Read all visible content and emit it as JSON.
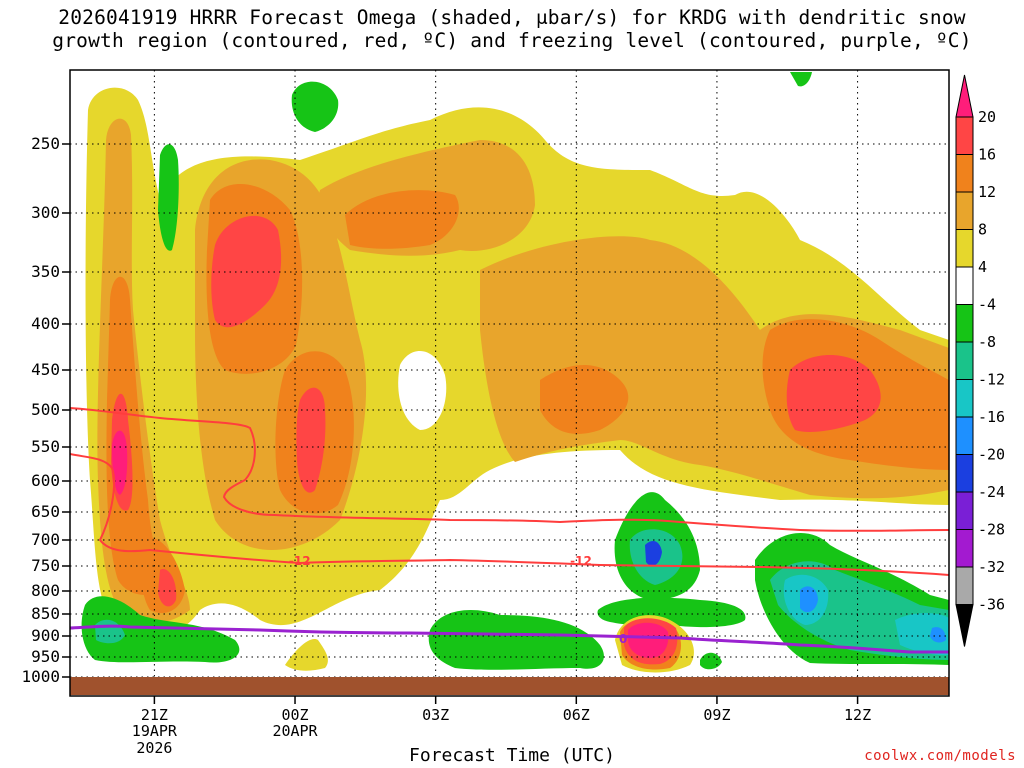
{
  "title": {
    "line1": "2026041919 HRRR Forecast Omega (shaded, μbar/s) for KRDG with dendritic snow",
    "line2": "growth region (contoured, red, ºC) and freezing level (contoured, purple, ºC)"
  },
  "x_axis_title": "Forecast Time (UTC)",
  "credit": "coolwx.com/models",
  "chart_data": {
    "type": "heatmap",
    "x": {
      "ticks": [
        {
          "label": "21Z",
          "sub": [
            "19APR",
            "2026"
          ],
          "hours": 2
        },
        {
          "label": "00Z",
          "sub": [
            "20APR"
          ],
          "hours": 5
        },
        {
          "label": "03Z",
          "sub": [],
          "hours": 8
        },
        {
          "label": "06Z",
          "sub": [],
          "hours": 11
        },
        {
          "label": "09Z",
          "sub": [],
          "hours": 14
        },
        {
          "label": "12Z",
          "sub": [],
          "hours": 17
        }
      ],
      "range_hours": [
        0.2,
        18.95
      ]
    },
    "y": {
      "scale": "pressure (hPa, inverted)",
      "ticks": [
        250,
        300,
        350,
        400,
        450,
        500,
        550,
        600,
        650,
        700,
        750,
        800,
        850,
        900,
        950,
        1000
      ],
      "range": [
        200,
        1015
      ]
    },
    "colorbar": {
      "labels": [
        "20",
        "16",
        "12",
        "8",
        "4",
        "-4",
        "-8",
        "-12",
        "-16",
        "-20",
        "-24",
        "-28",
        "-32",
        "-36"
      ],
      "colors": [
        "#ff1d7a",
        "#ff4545",
        "#f0821c",
        "#e8a52c",
        "#e6d72c",
        "#ffffff",
        "#16c416",
        "#1ac38a",
        "#18c6c6",
        "#1e90ff",
        "#1b3fe0",
        "#7a1fd6",
        "#a31ad0",
        "#a9a9a9"
      ]
    },
    "contour_labels": [
      {
        "text": "-12",
        "hours": 5.1,
        "p": 740
      },
      {
        "text": "-12",
        "hours": 11.1,
        "p": 740
      },
      {
        "text": "0",
        "hours": 12.0,
        "p": 907
      }
    ],
    "dgz_lines_color": "#ff3d3d",
    "freezing_line_color": "#9a22d0",
    "terrain_color": "#a0522d"
  }
}
